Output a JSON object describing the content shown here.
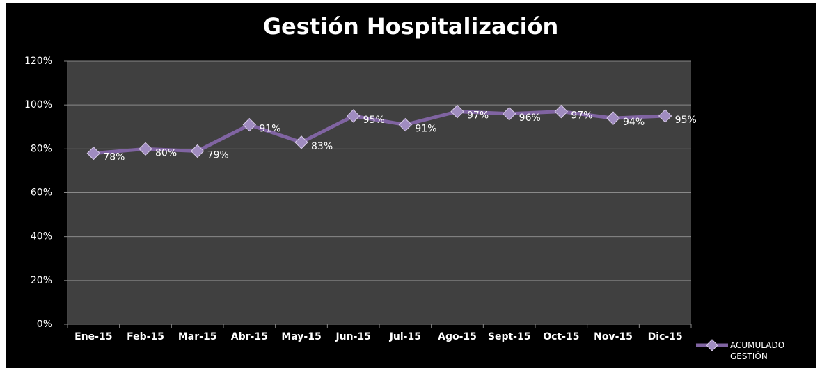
{
  "chart_data": {
    "type": "line",
    "title": "Gestión Hospitalización",
    "categories": [
      "Ene-15",
      "Feb-15",
      "Mar-15",
      "Abr-15",
      "May-15",
      "Jun-15",
      "Jul-15",
      "Ago-15",
      "Sept-15",
      "Oct-15",
      "Nov-15",
      "Dic-15"
    ],
    "series": [
      {
        "name": "ACUMULADO GESTIÓN",
        "color": "#8064a2",
        "values": [
          78,
          80,
          79,
          91,
          83,
          95,
          91,
          97,
          96,
          97,
          94,
          95
        ],
        "value_labels": [
          "78%",
          "80%",
          "79%",
          "91%",
          "83%",
          "95%",
          "91%",
          "97%",
          "96%",
          "97%",
          "94%",
          "95%"
        ]
      }
    ],
    "ylim": [
      0,
      120
    ],
    "yticks": [
      {
        "value": 0,
        "label": "0%"
      },
      {
        "value": 20,
        "label": "20%"
      },
      {
        "value": 40,
        "label": "40%"
      },
      {
        "value": 60,
        "label": "60%"
      },
      {
        "value": 80,
        "label": "80%"
      },
      {
        "value": 100,
        "label": "100%"
      },
      {
        "value": 120,
        "label": "120%"
      }
    ],
    "grid": true,
    "legend": "bottom-right"
  }
}
